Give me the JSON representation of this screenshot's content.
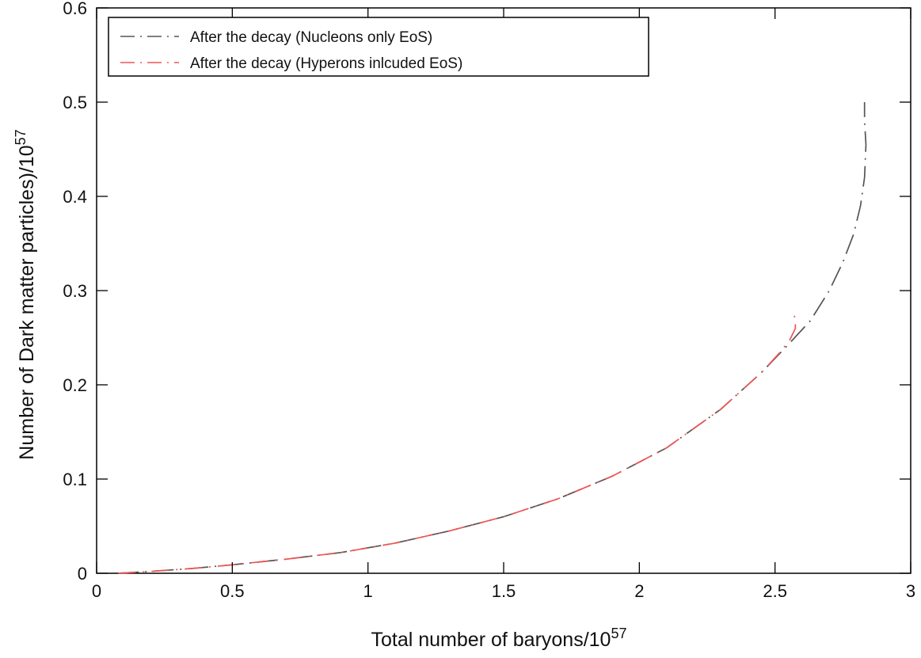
{
  "chart_data": {
    "type": "line",
    "xlabel": "Total number of baryons/10",
    "xlabel_exp": "57",
    "ylabel": "Number of Dark matter particles)/10",
    "ylabel_exp": "57",
    "xlim": [
      0,
      3
    ],
    "ylim": [
      0,
      0.6
    ],
    "xticks": [
      0,
      0.5,
      1,
      1.5,
      2,
      2.5,
      3
    ],
    "xtick_labels": [
      "0",
      "0.5",
      "1",
      "1.5",
      "2",
      "2.5",
      "3"
    ],
    "yticks": [
      0,
      0.1,
      0.2,
      0.3,
      0.4,
      0.5,
      0.6
    ],
    "ytick_labels": [
      "0",
      "0.1",
      "0.2",
      "0.3",
      "0.4",
      "0.5",
      "0.6"
    ],
    "grid": false,
    "legend_position": "top-left",
    "series": [
      {
        "name": "After the decay (Nucleons only EoS)",
        "color": "#555555",
        "style": "dash-dot",
        "x": [
          0.08,
          0.2,
          0.35,
          0.5,
          0.7,
          0.9,
          1.1,
          1.3,
          1.5,
          1.7,
          1.9,
          2.1,
          2.3,
          2.45,
          2.55,
          2.63,
          2.7,
          2.75,
          2.79,
          2.815,
          2.83,
          2.835,
          2.83,
          2.83
        ],
        "y": [
          0.0,
          0.002,
          0.005,
          0.009,
          0.015,
          0.022,
          0.032,
          0.045,
          0.06,
          0.079,
          0.103,
          0.133,
          0.174,
          0.213,
          0.243,
          0.268,
          0.3,
          0.33,
          0.36,
          0.39,
          0.42,
          0.455,
          0.48,
          0.5
        ]
      },
      {
        "name": "After the decay (Hyperons inlcuded EoS)",
        "color": "#ee5555",
        "style": "dash-dot",
        "x": [
          0.08,
          0.2,
          0.35,
          0.5,
          0.7,
          0.9,
          1.1,
          1.3,
          1.5,
          1.7,
          1.9,
          2.1,
          2.3,
          2.45,
          2.52,
          2.555,
          2.575,
          2.575,
          2.565
        ],
        "y": [
          0.0,
          0.002,
          0.005,
          0.009,
          0.015,
          0.022,
          0.032,
          0.045,
          0.06,
          0.079,
          0.103,
          0.133,
          0.174,
          0.213,
          0.235,
          0.248,
          0.26,
          0.27,
          0.278
        ]
      }
    ]
  }
}
